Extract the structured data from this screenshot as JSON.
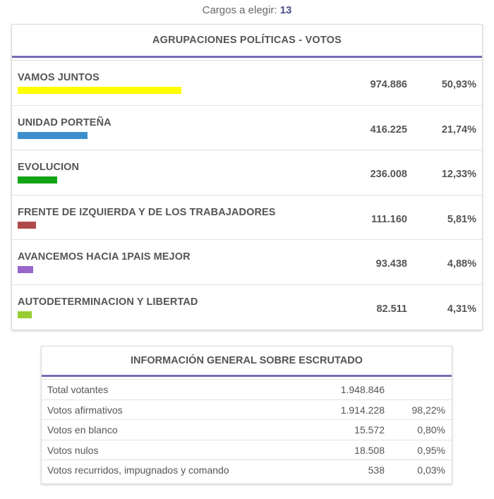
{
  "cargos": {
    "label": "Cargos a elegir:",
    "value": "13"
  },
  "votes_table": {
    "title": "AGRUPACIONES POLÍTICAS - VOTOS",
    "rows": [
      {
        "name": "VAMOS JUNTOS",
        "votes": "974.886",
        "percent": "50,93%",
        "share": 0.5093,
        "color": "#ffff00"
      },
      {
        "name": "UNIDAD PORTEÑA",
        "votes": "416.225",
        "percent": "21,74%",
        "share": 0.2174,
        "color": "#3d8fcc"
      },
      {
        "name": "EVOLUCION",
        "votes": "236.008",
        "percent": "12,33%",
        "share": 0.1233,
        "color": "#14a314"
      },
      {
        "name": "FRENTE DE IZQUIERDA Y DE LOS TRABAJADORES",
        "votes": "111.160",
        "percent": "5,81%",
        "share": 0.0581,
        "color": "#b04a4a"
      },
      {
        "name": "AVANCEMOS HACIA 1PAIS MEJOR",
        "votes": "93.438",
        "percent": "4,88%",
        "share": 0.0488,
        "color": "#9966cc"
      },
      {
        "name": "AUTODETERMINACION Y LIBERTAD",
        "votes": "82.511",
        "percent": "4,31%",
        "share": 0.0431,
        "color": "#99cc33"
      }
    ]
  },
  "info_table": {
    "title": "INFORMACIÓN GENERAL SOBRE ESCRUTADO",
    "rows": [
      {
        "label": "Total votantes",
        "value": "1.948.846",
        "percent": ""
      },
      {
        "label": "Votos afirmativos",
        "value": "1.914.228",
        "percent": "98,22%"
      },
      {
        "label": "Votos en blanco",
        "value": "15.572",
        "percent": "0,80%"
      },
      {
        "label": "Votos nulos",
        "value": "18.508",
        "percent": "0,95%"
      },
      {
        "label": "Votos recurridos, impugnados y comando",
        "value": "538",
        "percent": "0,03%"
      }
    ]
  }
}
